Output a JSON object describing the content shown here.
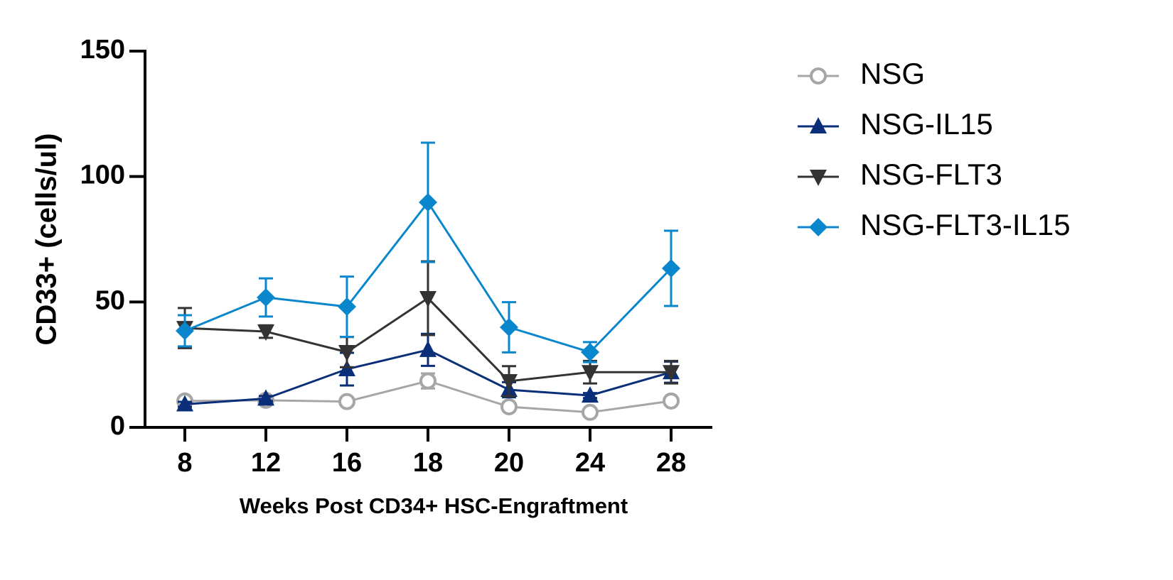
{
  "chart_data": {
    "type": "line",
    "x_label": "Weeks Post CD34+ HSC-Engraftment",
    "y_label": "CD33+ (cells/ul)",
    "categories": [
      "8",
      "12",
      "16",
      "18",
      "20",
      "24",
      "28"
    ],
    "ylim": [
      0,
      150
    ],
    "yticks": [
      0,
      50,
      100,
      150
    ],
    "series": [
      {
        "name": "NSG",
        "color": "#a6a6a6",
        "marker": "circle",
        "values": [
          10.5,
          10.8,
          10.3,
          18.5,
          8.2,
          6,
          10.5
        ],
        "errors": [
          1,
          1.5,
          1,
          3,
          1,
          1,
          1
        ]
      },
      {
        "name": "NSG-IL15",
        "color": "#0a2f78",
        "marker": "triangle-up",
        "values": [
          9.2,
          11.5,
          23.2,
          30.9,
          15,
          12.7,
          22
        ],
        "errors": [
          1,
          1,
          6.5,
          6.4,
          3,
          1,
          4.2
        ]
      },
      {
        "name": "NSG-FLT3",
        "color": "#333333",
        "marker": "triangle-down",
        "values": [
          39.6,
          38.2,
          30,
          51.5,
          18.4,
          22,
          22
        ],
        "errors": [
          8,
          2.5,
          6,
          14.7,
          6,
          4.5,
          4.5
        ]
      },
      {
        "name": "NSG-FLT3-IL15",
        "color": "#0a87cc",
        "marker": "diamond",
        "values": [
          38.5,
          51.8,
          48.1,
          89.7,
          39.9,
          30,
          63.4
        ],
        "errors": [
          6.2,
          7.6,
          12,
          23.8,
          10,
          4,
          15
        ]
      }
    ]
  }
}
